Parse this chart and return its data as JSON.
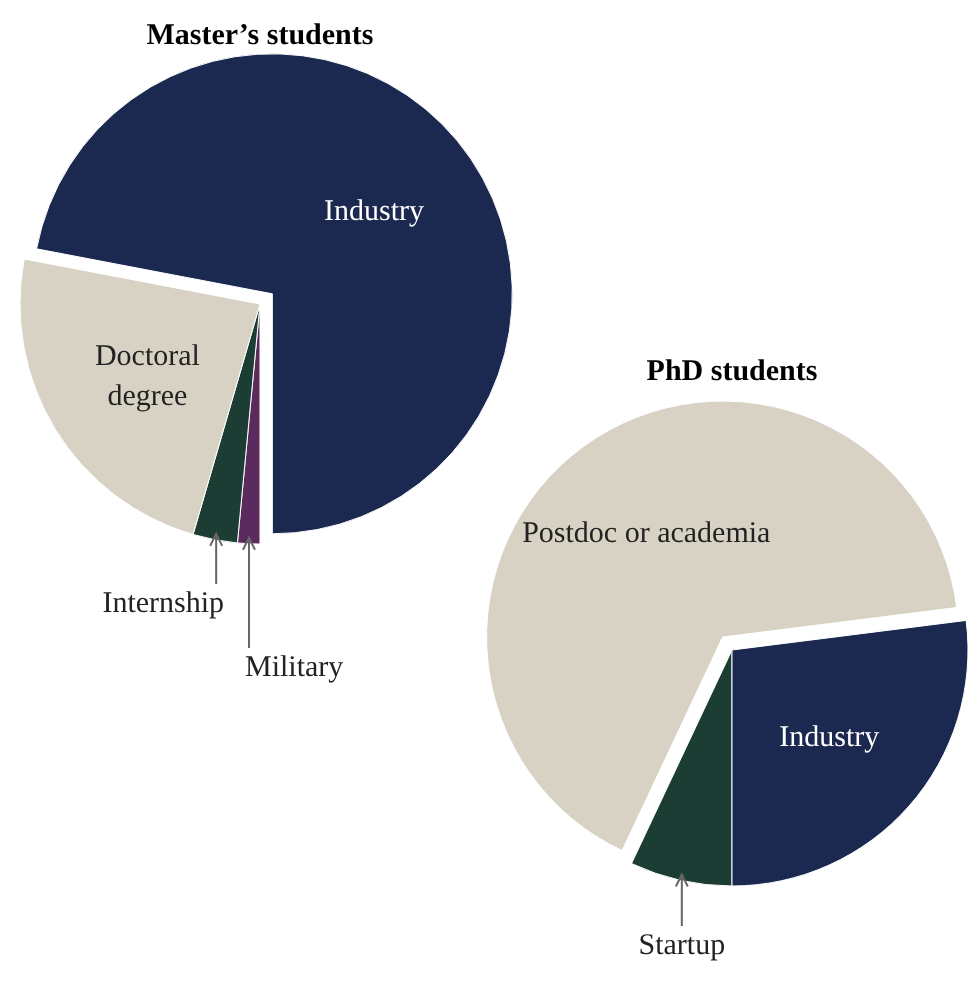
{
  "chart_data": [
    {
      "type": "pie",
      "title": "Master’s students",
      "categories": [
        "Military",
        "Internship",
        "Doctoral degree",
        "Industry"
      ],
      "values": [
        1.5,
        3,
        23.5,
        72
      ],
      "colors": [
        "#5b2a5e",
        "#1c3d33",
        "#d8d2c4",
        "#1b2850"
      ]
    },
    {
      "type": "pie",
      "title": "PhD students",
      "categories": [
        "Startup",
        "Postdoc or academia",
        "Industry"
      ],
      "values": [
        7,
        66,
        27
      ],
      "colors": [
        "#1c3d33",
        "#d8d2c4",
        "#1b2850"
      ]
    }
  ]
}
